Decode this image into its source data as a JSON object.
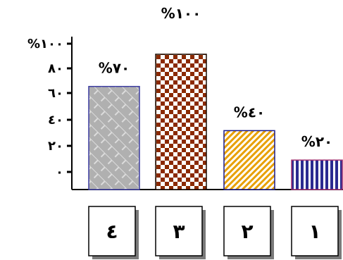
{
  "chart_data": {
    "type": "bar",
    "categories": [
      "٤",
      "٣",
      "٢",
      "١"
    ],
    "values": [
      70,
      100,
      40,
      20
    ],
    "value_labels": [
      "%٧٠",
      "%١٠٠",
      "%٤٠",
      "%٢٠"
    ],
    "y_tick_labels": [
      "%١٠٠",
      "٨٠",
      "٦٠",
      "٤٠",
      "٢٠",
      "٠"
    ],
    "y_ticks": [
      100,
      80,
      60,
      40,
      20,
      0
    ],
    "ylim": [
      0,
      100
    ],
    "grid": false,
    "series_colors": [
      {
        "fg": "#b5b5b5",
        "bg": "#e2e2e2",
        "border": "#3b3ba0"
      },
      {
        "fg": "#8b2a00",
        "bg": "#ffffff",
        "border": "#1a0a00"
      },
      {
        "fg": "#e8a000",
        "bg": "#ffffff",
        "border": "#1a1a8a"
      },
      {
        "fg": "#2a2a90",
        "bg": "#ffffff",
        "border": "#a03070"
      }
    ]
  }
}
